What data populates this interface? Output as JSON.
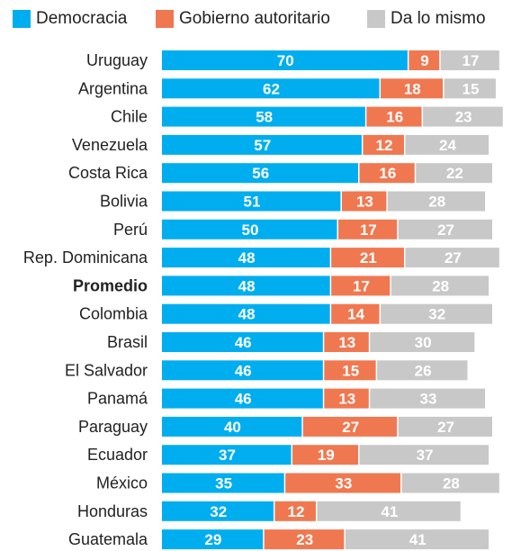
{
  "legend": [
    {
      "label": "Democracia",
      "color": "#00AEEF"
    },
    {
      "label": "Gobierno autoritario",
      "color": "#F07850"
    },
    {
      "label": "Da lo mismo",
      "color": "#C8C8C8"
    }
  ],
  "chart_data": {
    "type": "bar",
    "orientation": "horizontal",
    "stacked": true,
    "legend_position": "top",
    "grid": false,
    "xlim": [
      0,
      100
    ],
    "categories": [
      "Uruguay",
      "Argentina",
      "Chile",
      "Venezuela",
      "Costa Rica",
      "Bolivia",
      "Perú",
      "Rep. Dominicana",
      "Promedio",
      "Colombia",
      "Brasil",
      "El Salvador",
      "Panamá",
      "Paraguay",
      "Ecuador",
      "México",
      "Honduras",
      "Guatemala"
    ],
    "highlight_category": "Promedio",
    "series": [
      {
        "name": "Democracia",
        "color": "#00AEEF",
        "values": [
          70,
          62,
          58,
          57,
          56,
          51,
          50,
          48,
          48,
          48,
          46,
          46,
          46,
          40,
          37,
          35,
          32,
          29
        ]
      },
      {
        "name": "Gobierno autoritario",
        "color": "#F07850",
        "values": [
          9,
          18,
          16,
          12,
          16,
          13,
          17,
          21,
          17,
          14,
          13,
          15,
          13,
          27,
          19,
          33,
          12,
          23
        ]
      },
      {
        "name": "Da lo mismo",
        "color": "#C8C8C8",
        "values": [
          17,
          15,
          23,
          24,
          22,
          28,
          27,
          27,
          28,
          32,
          30,
          26,
          33,
          27,
          37,
          28,
          41,
          41
        ]
      }
    ]
  }
}
